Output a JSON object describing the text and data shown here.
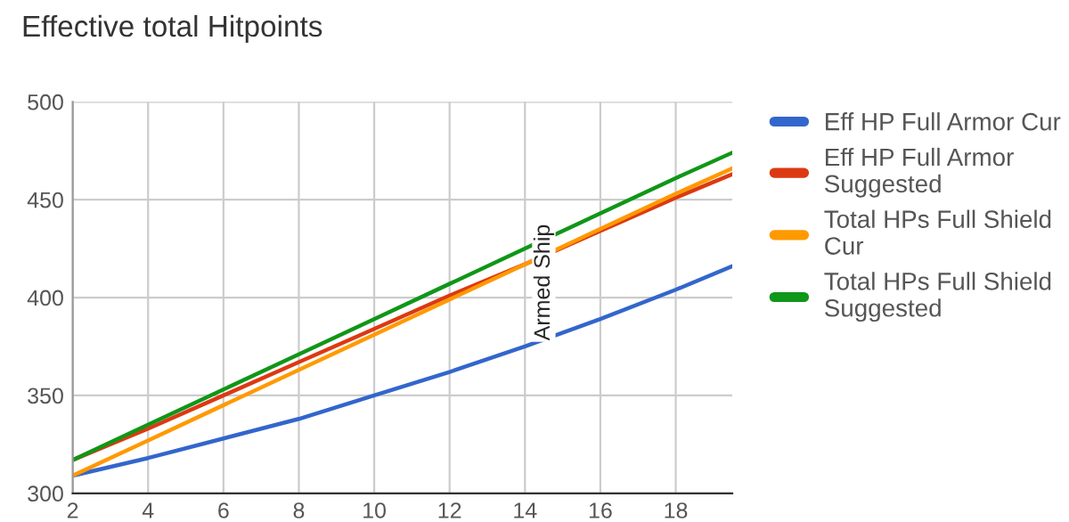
{
  "chart_data": {
    "type": "line",
    "title": "Effective total Hitpoints",
    "x": [
      2,
      4,
      6,
      8,
      10,
      12,
      14,
      16,
      18,
      19.5
    ],
    "series": [
      {
        "name": "Eff HP Full Armor Cur",
        "color": "#3366cc",
        "values": [
          309,
          318,
          328,
          338,
          350,
          362,
          375,
          389,
          404,
          416
        ]
      },
      {
        "name": "Eff HP Full Armor Suggested",
        "color": "#dc3912",
        "values": [
          317,
          333,
          350,
          367,
          384,
          401,
          417,
          434,
          451,
          463
        ]
      },
      {
        "name": "Total HPs Full Shield Cur",
        "color": "#ff9900",
        "values": [
          309,
          327,
          345,
          363,
          381,
          399,
          417,
          435,
          453,
          466
        ]
      },
      {
        "name": "Total HPs Full Shield Suggested",
        "color": "#109618",
        "values": [
          317,
          335,
          353,
          371,
          389,
          407,
          425,
          443,
          461,
          474
        ]
      }
    ],
    "annotations": [
      {
        "text": "Armed Ship",
        "x": 14.5,
        "y": 378
      }
    ],
    "xlim": [
      2,
      19.5
    ],
    "xticks": [
      2,
      4,
      6,
      8,
      10,
      12,
      14,
      16,
      18
    ],
    "ylim": [
      300,
      500
    ],
    "yticks": [
      300,
      350,
      400,
      450,
      500
    ],
    "grid": true,
    "legend": "right",
    "marker": "none",
    "line_style": "solid"
  }
}
